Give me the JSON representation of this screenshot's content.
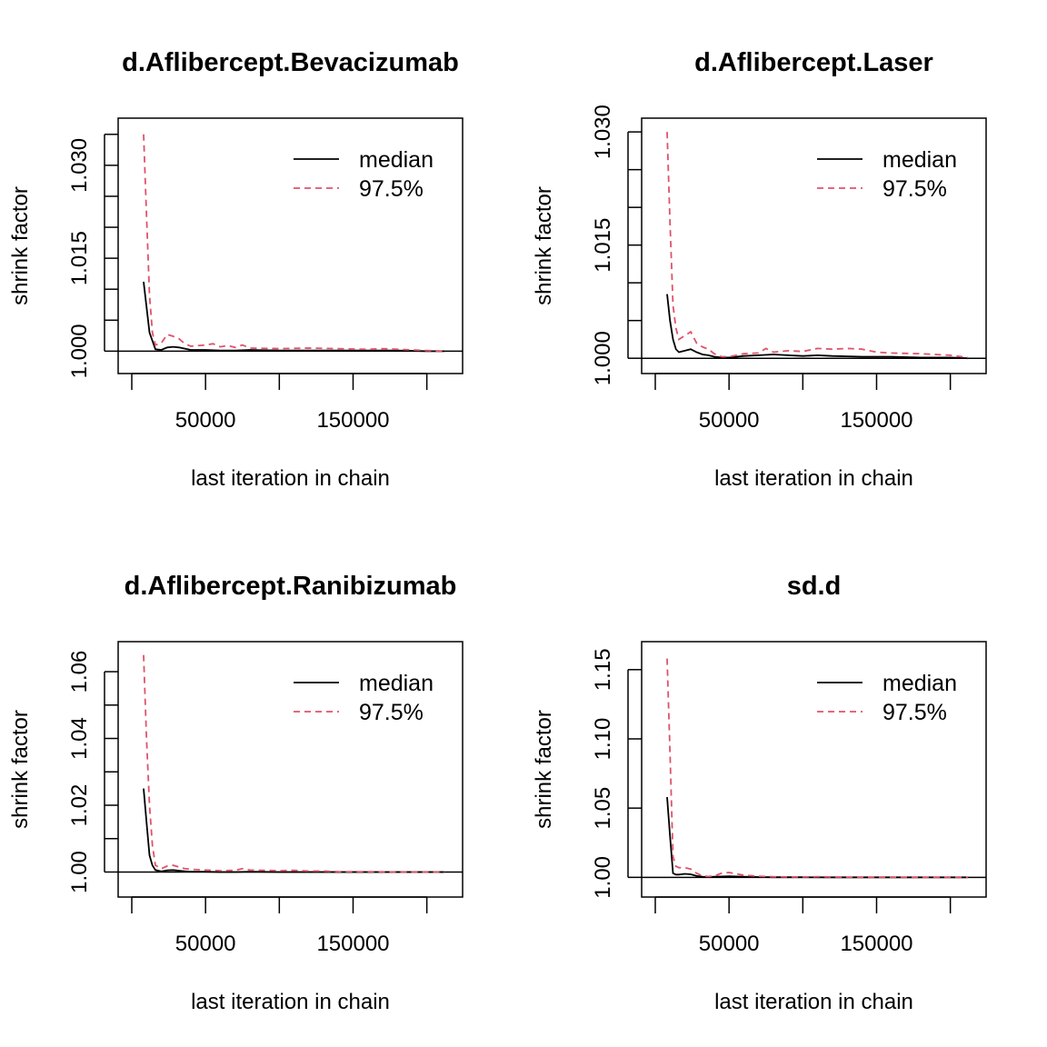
{
  "colors": {
    "median": "#000000",
    "q975": "#DF536B",
    "axis": "#000000",
    "background": "#FFFFFF"
  },
  "legend": {
    "median": "median",
    "q975": "97.5%",
    "placement": "top-right"
  },
  "chart_data": [
    {
      "type": "line",
      "title": "d.Aflibercept.Bevacizumab",
      "xlabel": "last iteration in chain",
      "ylabel": "shrink factor",
      "xlim": [
        0,
        215000
      ],
      "ylim": [
        0.998,
        1.036
      ],
      "xticks": [
        0,
        50000,
        100000,
        150000,
        200000
      ],
      "xtick_labels": [
        "",
        "50000",
        "",
        "150000",
        ""
      ],
      "yticks": [
        1.0,
        1.005,
        1.01,
        1.015,
        1.02,
        1.025,
        1.03,
        1.035
      ],
      "ytick_labels": [
        "1.000",
        "",
        "",
        "1.015",
        "",
        "",
        "1.030",
        ""
      ],
      "series": [
        {
          "name": "median",
          "x": [
            8000,
            12000,
            16000,
            20000,
            24000,
            28000,
            32000,
            36000,
            40000,
            50000,
            60000,
            70000,
            80000,
            100000,
            120000,
            140000,
            160000,
            180000,
            200000,
            212000
          ],
          "y": [
            1.0112,
            1.003,
            1.0003,
            1.0002,
            1.0006,
            1.0007,
            1.0006,
            1.0004,
            1.0002,
            1.0002,
            1.0001,
            1.0001,
            1.0002,
            1.0001,
            1.0001,
            1.0001,
            1.0001,
            1.0001,
            1.0,
            1.0
          ]
        },
        {
          "name": "97.5%",
          "x": [
            8000,
            10000,
            12000,
            14000,
            16000,
            20000,
            24000,
            28000,
            32000,
            36000,
            40000,
            50000,
            55000,
            60000,
            65000,
            70000,
            75000,
            80000,
            100000,
            120000,
            140000,
            160000,
            170000,
            180000,
            200000,
            212000
          ],
          "y": [
            1.035,
            1.022,
            1.009,
            1.003,
            1.001,
            1.0013,
            1.0027,
            1.0024,
            1.002,
            1.0012,
            1.0008,
            1.001,
            1.0012,
            1.0007,
            1.0009,
            1.0006,
            1.001,
            1.0005,
            1.0004,
            1.0005,
            1.0004,
            1.0003,
            1.0004,
            1.0003,
            1.0001,
            1.0
          ]
        }
      ]
    },
    {
      "type": "line",
      "title": "d.Aflibercept.Laser",
      "xlabel": "last iteration in chain",
      "ylabel": "shrink factor",
      "xlim": [
        0,
        215000
      ],
      "ylim": [
        0.9993,
        1.0305
      ],
      "xticks": [
        0,
        50000,
        100000,
        150000,
        200000
      ],
      "xtick_labels": [
        "",
        "50000",
        "",
        "150000",
        ""
      ],
      "yticks": [
        1.0,
        1.005,
        1.01,
        1.015,
        1.02,
        1.025,
        1.03
      ],
      "ytick_labels": [
        "1.000",
        "",
        "",
        "1.015",
        "",
        "",
        "1.030"
      ],
      "series": [
        {
          "name": "median",
          "x": [
            8000,
            10000,
            12000,
            14000,
            16000,
            20000,
            24000,
            28000,
            32000,
            36000,
            40000,
            45000,
            50000,
            60000,
            70000,
            80000,
            90000,
            100000,
            110000,
            120000,
            140000,
            160000,
            180000,
            200000,
            212000
          ],
          "y": [
            1.0085,
            1.005,
            1.0025,
            1.0012,
            1.0008,
            1.001,
            1.0012,
            1.0008,
            1.0005,
            1.0004,
            1.0002,
            1.0001,
            1.0001,
            1.0003,
            1.0004,
            1.0005,
            1.0004,
            1.0003,
            1.0004,
            1.0003,
            1.0002,
            1.0002,
            1.0001,
            1.0001,
            1.0
          ]
        },
        {
          "name": "97.5%",
          "x": [
            8000,
            10000,
            12000,
            14000,
            16000,
            20000,
            24000,
            28000,
            32000,
            36000,
            40000,
            45000,
            50000,
            55000,
            60000,
            70000,
            75000,
            80000,
            90000,
            100000,
            110000,
            120000,
            130000,
            140000,
            150000,
            160000,
            180000,
            200000,
            212000
          ],
          "y": [
            1.03,
            1.018,
            1.007,
            1.004,
            1.0025,
            1.003,
            1.0035,
            1.002,
            1.0015,
            1.0012,
            1.0006,
            1.0002,
            1.0002,
            1.0004,
            1.0006,
            1.0007,
            1.0013,
            1.0008,
            1.001,
            1.0009,
            1.0013,
            1.0012,
            1.0013,
            1.0012,
            1.0008,
            1.0007,
            1.0006,
            1.0004,
            1.0001
          ]
        }
      ]
    },
    {
      "type": "line",
      "title": "d.Aflibercept.Ranibizumab",
      "xlabel": "last iteration in chain",
      "ylabel": "shrink factor",
      "xlim": [
        0,
        215000
      ],
      "ylim": [
        0.9955,
        1.066
      ],
      "xticks": [
        0,
        50000,
        100000,
        150000,
        200000
      ],
      "xtick_labels": [
        "",
        "50000",
        "",
        "150000",
        ""
      ],
      "yticks": [
        1.0,
        1.01,
        1.02,
        1.03,
        1.04,
        1.05,
        1.06
      ],
      "ytick_labels": [
        "1.00",
        "",
        "1.02",
        "",
        "1.04",
        "",
        "1.06"
      ],
      "series": [
        {
          "name": "median",
          "x": [
            8000,
            10000,
            12000,
            14000,
            16000,
            20000,
            24000,
            28000,
            32000,
            36000,
            40000,
            50000,
            60000,
            70000,
            80000,
            100000,
            120000,
            140000,
            160000,
            180000,
            200000,
            212000
          ],
          "y": [
            1.025,
            1.015,
            1.005,
            1.002,
            1.0006,
            1.0002,
            1.0005,
            1.0006,
            1.0004,
            1.0002,
            1.0001,
            1.0001,
            1.0,
            1.0,
            1.0001,
            1.0,
            1.0,
            1.0,
            1.0,
            1.0,
            1.0,
            1.0
          ]
        },
        {
          "name": "97.5%",
          "x": [
            8000,
            10000,
            12000,
            14000,
            16000,
            20000,
            24000,
            28000,
            32000,
            36000,
            40000,
            50000,
            60000,
            70000,
            75000,
            80000,
            90000,
            100000,
            110000,
            120000,
            130000,
            140000,
            160000,
            180000,
            200000,
            212000
          ],
          "y": [
            1.065,
            1.04,
            1.02,
            1.008,
            1.002,
            1.001,
            1.0018,
            1.002,
            1.0015,
            1.001,
            1.0008,
            1.0006,
            1.0004,
            1.0005,
            1.001,
            1.0006,
            1.0005,
            1.0004,
            1.0005,
            1.0003,
            1.0003,
            1.0001,
            1.0001,
            1.0,
            1.0,
            1.0
          ]
        }
      ]
    },
    {
      "type": "line",
      "title": "sd.d",
      "xlabel": "last iteration in chain",
      "ylabel": "shrink factor",
      "xlim": [
        0,
        215000
      ],
      "ylim": [
        0.993,
        1.163
      ],
      "xticks": [
        0,
        50000,
        100000,
        150000,
        200000
      ],
      "xtick_labels": [
        "",
        "50000",
        "",
        "150000",
        ""
      ],
      "yticks": [
        1.0,
        1.05,
        1.1,
        1.15
      ],
      "ytick_labels": [
        "1.00",
        "1.05",
        "1.10",
        "1.15"
      ],
      "series": [
        {
          "name": "median",
          "x": [
            8000,
            10000,
            12000,
            14000,
            16000,
            20000,
            24000,
            28000,
            32000,
            36000,
            40000,
            50000,
            60000,
            70000,
            80000,
            100000,
            120000,
            140000,
            160000,
            180000,
            200000,
            212000
          ],
          "y": [
            1.058,
            1.03,
            1.003,
            1.002,
            1.002,
            1.0025,
            1.0022,
            1.001,
            1.0005,
            1.0003,
            1.0004,
            1.0008,
            1.0004,
            1.0002,
            1.0001,
            1.0001,
            1.0,
            1.0,
            1.0,
            1.0,
            1.0,
            1.0
          ]
        },
        {
          "name": "97.5%",
          "x": [
            8000,
            10000,
            12000,
            14000,
            16000,
            20000,
            24000,
            28000,
            32000,
            36000,
            40000,
            45000,
            50000,
            55000,
            60000,
            70000,
            80000,
            100000,
            110000,
            120000,
            140000,
            160000,
            180000,
            200000,
            212000
          ],
          "y": [
            1.158,
            1.09,
            1.015,
            1.008,
            1.007,
            1.007,
            1.006,
            1.003,
            1.001,
            1.0006,
            1.001,
            1.003,
            1.0035,
            1.0025,
            1.0015,
            1.0008,
            1.0004,
            1.0002,
            1.0005,
            1.0002,
            1.0001,
            1.0001,
            1.0,
            1.0,
            1.0
          ]
        }
      ]
    }
  ]
}
